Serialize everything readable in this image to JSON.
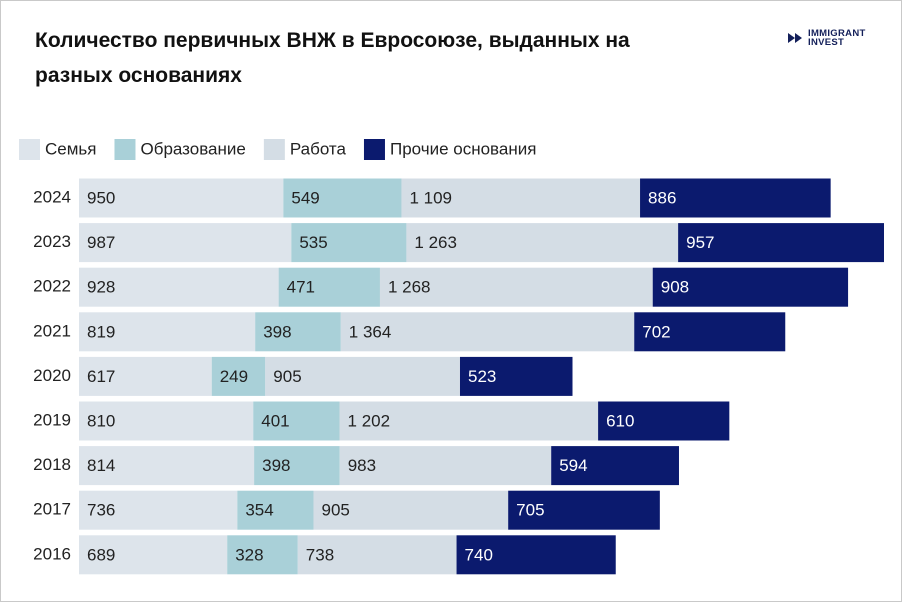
{
  "logo": [
    "IMMIGRANT",
    "INVEST"
  ],
  "chart_data": {
    "type": "stacked-bar-horizontal",
    "title": "Количество первичных ВНЖ в Евросоюзе, выданных на разных основаниях",
    "categories": [
      "2024",
      "2023",
      "2022",
      "2021",
      "2020",
      "2019",
      "2018",
      "2017",
      "2016"
    ],
    "series": [
      {
        "name": "Семья",
        "color": "#dde4eb",
        "label_color": "#222222",
        "values": [
          950,
          987,
          928,
          819,
          617,
          810,
          814,
          736,
          689
        ]
      },
      {
        "name": "Образование",
        "color": "#a9d0d8",
        "label_color": "#222222",
        "values": [
          549,
          535,
          471,
          398,
          249,
          401,
          398,
          354,
          328
        ]
      },
      {
        "name": "Работа",
        "color": "#d4dde5",
        "label_color": "#222222",
        "values": [
          1109,
          1263,
          1268,
          1364,
          905,
          1202,
          983,
          905,
          738
        ],
        "value_labels": [
          "1 109",
          "1 263",
          "1 268",
          "1 364",
          "905",
          "1 202",
          "983",
          "905",
          "738"
        ]
      },
      {
        "name": "Прочие основания",
        "color": "#0b1a6e",
        "label_color": "#ffffff",
        "values": [
          886,
          957,
          908,
          702,
          523,
          610,
          594,
          705,
          740
        ]
      }
    ],
    "legend": "top-left"
  }
}
